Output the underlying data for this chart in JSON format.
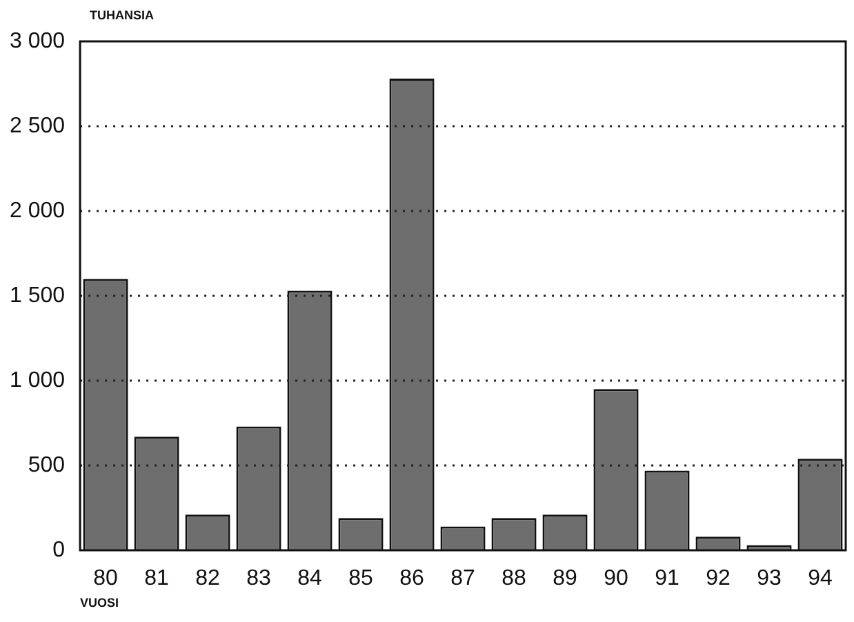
{
  "chart_data": {
    "type": "bar",
    "ylabel": "TUHANSIA",
    "xlabel": "VUOSI",
    "categories": [
      "80",
      "81",
      "82",
      "83",
      "84",
      "85",
      "86",
      "87",
      "88",
      "89",
      "90",
      "91",
      "92",
      "93",
      "94"
    ],
    "values": [
      1600,
      670,
      210,
      730,
      1530,
      190,
      2780,
      140,
      190,
      210,
      950,
      470,
      80,
      30,
      540
    ],
    "color": "#6e6e6e",
    "ylim": [
      0,
      3000
    ],
    "yticks": [
      {
        "value": 0,
        "label": "0"
      },
      {
        "value": 500,
        "label": "500"
      },
      {
        "value": 1000,
        "label": "1 000"
      },
      {
        "value": 1500,
        "label": "1 500"
      },
      {
        "value": 2000,
        "label": "2 000"
      },
      {
        "value": 2500,
        "label": "2 500"
      },
      {
        "value": 3000,
        "label": "3 000"
      }
    ],
    "grid": "y",
    "legend": false
  }
}
